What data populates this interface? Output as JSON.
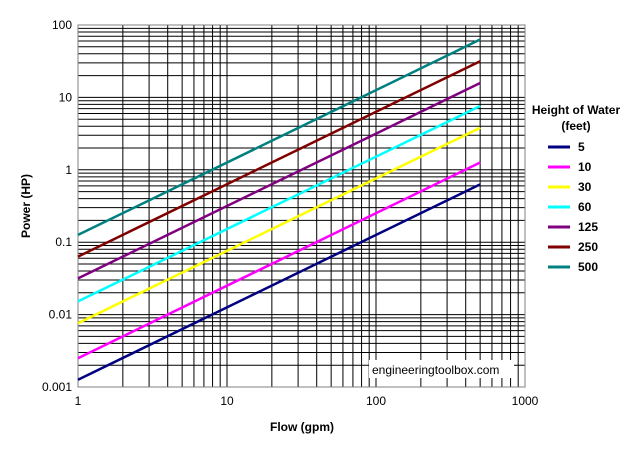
{
  "chart_data": {
    "type": "line",
    "xlabel": "Flow (gpm)",
    "ylabel": "Power (HP)",
    "xscale": "log",
    "yscale": "log",
    "xlim": [
      1,
      1000
    ],
    "ylim": [
      0.001,
      100
    ],
    "grid": true,
    "x_tick_labels": [
      "1",
      "10",
      "100",
      "1000"
    ],
    "y_tick_labels": [
      "0.001",
      "0.01",
      "0.1",
      "1",
      "10",
      "100"
    ],
    "legend_title": "Height of Water (feet)",
    "legend_position": "right",
    "annotation": "engineeringtoolbox.com",
    "series": [
      {
        "name": "5",
        "color": "#000080",
        "x": [
          1,
          500
        ],
        "y": [
          0.00126,
          0.63
        ]
      },
      {
        "name": "10",
        "color": "#ff00ff",
        "x": [
          1,
          500
        ],
        "y": [
          0.0025,
          1.26
        ]
      },
      {
        "name": "30",
        "color": "#ffff00",
        "x": [
          1,
          500
        ],
        "y": [
          0.0076,
          3.8
        ]
      },
      {
        "name": "60",
        "color": "#00ffff",
        "x": [
          1,
          500
        ],
        "y": [
          0.0152,
          7.6
        ]
      },
      {
        "name": "125",
        "color": "#800080",
        "x": [
          1,
          500
        ],
        "y": [
          0.0316,
          15.8
        ]
      },
      {
        "name": "250",
        "color": "#800000",
        "x": [
          1,
          500
        ],
        "y": [
          0.0632,
          31.6
        ]
      },
      {
        "name": "500",
        "color": "#008080",
        "x": [
          1,
          500
        ],
        "y": [
          0.126,
          63
        ]
      }
    ]
  }
}
